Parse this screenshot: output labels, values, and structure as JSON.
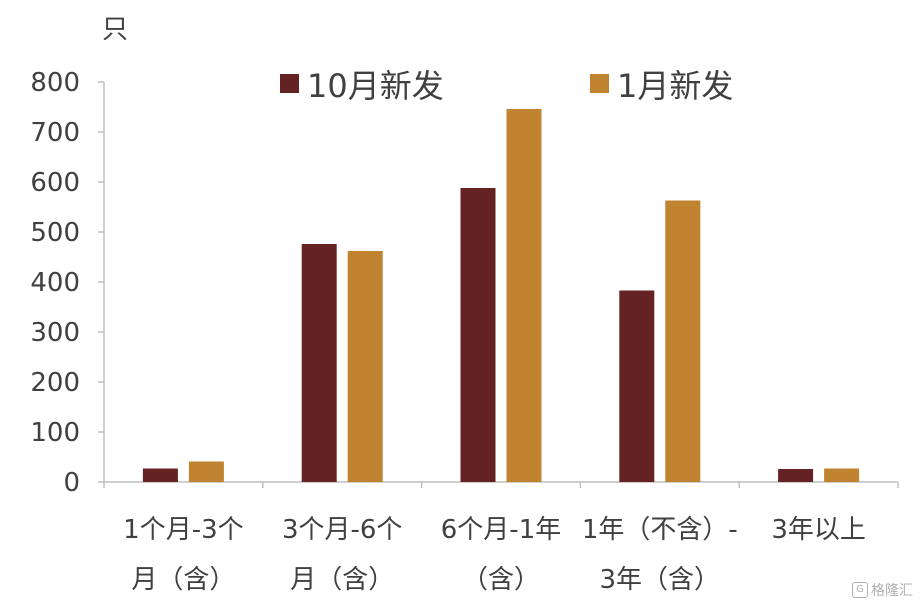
{
  "chart_data": {
    "type": "bar",
    "unit_label": "只",
    "ylim": [
      0,
      800
    ],
    "yticks": [
      "0",
      "100",
      "200",
      "300",
      "400",
      "500",
      "600",
      "700",
      "800"
    ],
    "categories": [
      [
        "1个月-3个",
        "月（含）"
      ],
      [
        "3个月-6个",
        "月（含）"
      ],
      [
        "6个月-1年",
        "（含）"
      ],
      [
        "1年（不含）-",
        "3年（含）"
      ],
      [
        "3年以上"
      ]
    ],
    "series": [
      {
        "name": "10月新发",
        "color": "#652223",
        "values": [
          27,
          476,
          588,
          383,
          26
        ]
      },
      {
        "name": "1月新发",
        "color": "#C08431",
        "values": [
          41,
          462,
          746,
          563,
          27
        ]
      }
    ],
    "legend_position": "top-center",
    "grid": false
  },
  "watermark": {
    "icon": "G",
    "text": "格隆汇"
  }
}
